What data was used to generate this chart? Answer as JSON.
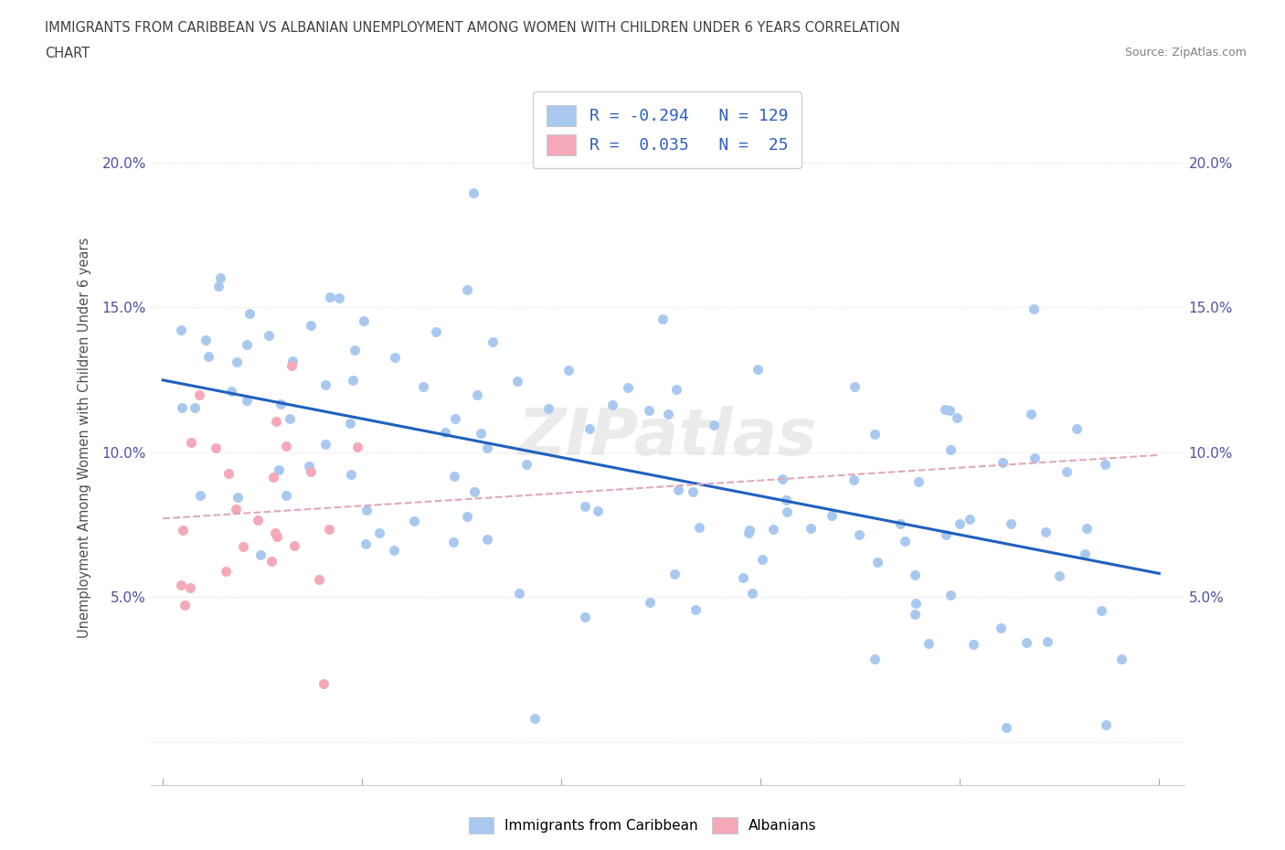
{
  "title_line1": "IMMIGRANTS FROM CARIBBEAN VS ALBANIAN UNEMPLOYMENT AMONG WOMEN WITH CHILDREN UNDER 6 YEARS CORRELATION",
  "title_line2": "CHART",
  "source": "Source: ZipAtlas.com",
  "ylabel": "Unemployment Among Women with Children Under 6 years",
  "caribbean_R": -0.294,
  "caribbean_N": 129,
  "albanian_R": 0.035,
  "albanian_N": 25,
  "caribbean_color": "#a8c8f0",
  "albanian_color": "#f4a8b8",
  "caribbean_line_color": "#2060c0",
  "albanian_line_color": "#e0a8b8",
  "background_color": "#ffffff",
  "grid_color": "#dddddd",
  "title_color": "#404040",
  "tick_label_color": "#5050a0",
  "legend_text_color": "#3060c0"
}
